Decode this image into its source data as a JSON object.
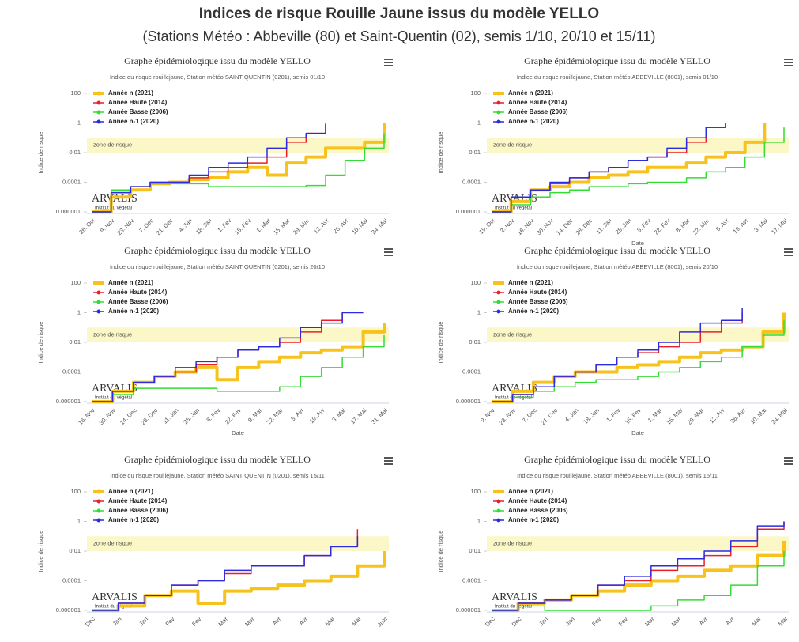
{
  "title": "Indices de risque Rouille Jaune issus du modèle YELLO",
  "subtitle": "(Stations Météo : Abbeville (80) et Saint-Quentin (02), semis 1/10, 20/10 et 15/11)",
  "chart_data": [
    {
      "type": "line",
      "title": "Graphe épidémiologique issu du modèle YELLO",
      "subtitle": "Indice du risque rouillejaune, Station météo SAINT QUENTIN (0201), semis 01/10",
      "ylabel": "Indice de risque",
      "ylog": true,
      "ylim": [
        1e-06,
        100
      ],
      "yticks": [
        100,
        1,
        0.01,
        0.0001,
        1e-06
      ],
      "risk_zone": {
        "label": "zone de risque",
        "range": [
          0.01,
          0.1
        ]
      },
      "logo": {
        "name": "ARVALIS",
        "tagline": "Institut du végétal"
      },
      "categories": [
        "26. Oct",
        "9. Nov",
        "23. Nov",
        "7. Dec",
        "21. Dec",
        "4. Jan",
        "18. Jan",
        "1. Fev",
        "15. Fev",
        "1. Mar",
        "15. Mar",
        "29. Mar",
        "12. Avr",
        "26. Avr",
        "10. Mai",
        "24. Mai"
      ],
      "series": [
        {
          "name": "Année n (2021)",
          "color": "#f7c21b",
          "values": [
            1e-06,
            1e-05,
            3e-05,
            8e-05,
            0.0001,
            0.00015,
            0.0002,
            0.0005,
            0.001,
            0.0003,
            0.002,
            0.005,
            0.02,
            0.02,
            0.05,
            1
          ]
        },
        {
          "name": "Année Haute (2014)",
          "color": "#e8202a",
          "values": [
            1e-06,
            2e-05,
            5e-05,
            0.0001,
            0.0001,
            0.0002,
            0.0005,
            0.001,
            0.002,
            0.005,
            0.05,
            0.2,
            1,
            null,
            null,
            null
          ]
        },
        {
          "name": "Année Basse (2006)",
          "color": "#33dd33",
          "values": [
            1e-06,
            3e-05,
            5e-05,
            8e-05,
            8e-05,
            8e-05,
            5e-05,
            5e-05,
            5e-05,
            5e-05,
            5e-05,
            6e-05,
            0.0003,
            0.003,
            0.02,
            0.2
          ]
        },
        {
          "name": "Année n-1 (2020)",
          "color": "#2b2be0",
          "values": [
            1e-06,
            2e-05,
            5e-05,
            0.0001,
            0.0001,
            0.0003,
            0.001,
            0.002,
            0.005,
            0.02,
            0.1,
            0.2,
            0.8,
            null,
            null,
            null
          ]
        }
      ]
    },
    {
      "type": "line",
      "title": "Graphe épidémiologique issu du modèle YELLO",
      "subtitle": "Indice du risque rouillejaune, Station météo ABBEVILLE (8001), semis 01/10",
      "ylabel": "Indice de risque",
      "xlabel": "Date",
      "ylog": true,
      "ylim": [
        1e-06,
        100
      ],
      "yticks": [
        100,
        1,
        0.01,
        0.0001,
        1e-06
      ],
      "risk_zone": {
        "label": "zone de risque",
        "range": [
          0.01,
          0.1
        ]
      },
      "logo": {
        "name": "ARVALIS",
        "tagline": "Institut du végétal"
      },
      "categories": [
        "19. Oct",
        "2. Nov",
        "16. Nov",
        "30. Nov",
        "14. Dec",
        "28. Dec",
        "11. Jan",
        "25. Jan",
        "8. Fev",
        "22. Fev",
        "8. Mar",
        "22. Mar",
        "5. Avr",
        "19. Avr",
        "3. Mai",
        "17. Mai"
      ],
      "series": [
        {
          "name": "Année n (2021)",
          "color": "#f7c21b",
          "values": [
            1e-06,
            5e-06,
            3e-05,
            5e-05,
            0.0001,
            0.0002,
            0.0003,
            0.0005,
            0.001,
            0.001,
            0.002,
            0.005,
            0.01,
            0.05,
            1,
            null
          ]
        },
        {
          "name": "Année Haute (2014)",
          "color": "#e8202a",
          "values": [
            1e-06,
            1e-05,
            3e-05,
            8e-05,
            0.0002,
            0.0005,
            0.001,
            0.003,
            0.005,
            0.01,
            0.05,
            0.5,
            1,
            null,
            null,
            null
          ]
        },
        {
          "name": "Année Basse (2006)",
          "color": "#33dd33",
          "values": [
            1e-06,
            3e-06,
            1e-05,
            2e-05,
            3e-05,
            5e-05,
            5e-05,
            8e-05,
            0.0001,
            0.0001,
            0.0002,
            0.0005,
            0.001,
            0.005,
            0.05,
            0.5
          ]
        },
        {
          "name": "Année n-1 (2020)",
          "color": "#2b2be0",
          "values": [
            1e-06,
            1e-05,
            3e-05,
            0.0001,
            0.0002,
            0.0005,
            0.001,
            0.003,
            0.005,
            0.02,
            0.1,
            0.5,
            1,
            null,
            null,
            null
          ]
        }
      ]
    },
    {
      "type": "line",
      "title": "Graphe épidémiologique issu du modèle YELLO",
      "subtitle": "Indice du risque rouillejaune, Station météo SAINT QUENTIN (0201), semis 20/10",
      "ylabel": "Indice de risque",
      "xlabel": "Date",
      "ylog": true,
      "ylim": [
        1e-06,
        100
      ],
      "yticks": [
        100,
        1,
        0.01,
        0.0001,
        1e-06
      ],
      "risk_zone": {
        "label": "zone de risque",
        "range": [
          0.01,
          0.1
        ]
      },
      "logo": {
        "name": "ARVALIS",
        "tagline": "Institut du végétal"
      },
      "categories": [
        "16. Nov",
        "30. Nov",
        "14. Dec",
        "28. Dec",
        "11. Jan",
        "25. Jan",
        "8. Fev",
        "22. Fev",
        "8. Mar",
        "22. Mar",
        "5. Avr",
        "19. Avr",
        "3. Mai",
        "17. Mai",
        "31. Mai"
      ],
      "series": [
        {
          "name": "Année n (2021)",
          "color": "#f7c21b",
          "values": [
            1e-06,
            5e-06,
            2e-05,
            5e-05,
            0.0001,
            0.0002,
            3e-05,
            0.0002,
            0.0005,
            0.001,
            0.002,
            0.003,
            0.005,
            0.05,
            0.2
          ]
        },
        {
          "name": "Année Haute (2014)",
          "color": "#e8202a",
          "values": [
            1e-06,
            5e-06,
            2e-05,
            5e-05,
            0.0001,
            0.0003,
            0.001,
            0.003,
            0.005,
            0.01,
            0.05,
            0.3,
            1,
            null,
            null
          ]
        },
        {
          "name": "Année Basse (2006)",
          "color": "#33dd33",
          "values": [
            1e-06,
            3e-06,
            8e-06,
            8e-06,
            8e-06,
            8e-06,
            5e-06,
            5e-06,
            5e-06,
            1e-05,
            5e-05,
            0.0002,
            0.001,
            0.005,
            0.03
          ]
        },
        {
          "name": "Année n-1 (2020)",
          "color": "#2b2be0",
          "values": [
            1e-06,
            5e-06,
            2e-05,
            5e-05,
            0.0002,
            0.0005,
            0.001,
            0.003,
            0.005,
            0.02,
            0.1,
            0.2,
            1,
            1,
            null
          ]
        }
      ]
    },
    {
      "type": "line",
      "title": "Graphe épidémiologique issu du modèle YELLO",
      "subtitle": "Indice du risque rouillejaune, Station météo ABBEVILLE (8001), semis 20/10",
      "ylabel": "Indice de risque",
      "xlabel": "Date",
      "ylog": true,
      "ylim": [
        1e-06,
        100
      ],
      "yticks": [
        100,
        1,
        0.01,
        0.0001,
        1e-06
      ],
      "risk_zone": {
        "label": "zone de risque",
        "range": [
          0.01,
          0.1
        ]
      },
      "logo": {
        "name": "ARVALIS",
        "tagline": "Institut du végétal"
      },
      "categories": [
        "9. Nov",
        "23. Nov",
        "7. Dec",
        "21. Dec",
        "4. Jan",
        "18. Jan",
        "1. Fev",
        "15. Fev",
        "1. Mar",
        "15. Mar",
        "29. Mar",
        "12. Avr",
        "26. Avr",
        "10. Mai",
        "24. Mai"
      ],
      "series": [
        {
          "name": "Année n (2021)",
          "color": "#f7c21b",
          "values": [
            1e-06,
            5e-06,
            2e-05,
            5e-05,
            0.0001,
            0.0001,
            0.0002,
            0.0003,
            0.0005,
            0.001,
            0.002,
            0.003,
            0.005,
            0.05,
            1
          ]
        },
        {
          "name": "Année Haute (2014)",
          "color": "#e8202a",
          "values": [
            1e-06,
            3e-06,
            1e-05,
            5e-05,
            0.0001,
            0.0003,
            0.001,
            0.002,
            0.005,
            0.01,
            0.05,
            0.2,
            1,
            null,
            null
          ]
        },
        {
          "name": "Année Basse (2006)",
          "color": "#33dd33",
          "values": [
            1e-06,
            2e-06,
            5e-06,
            1e-05,
            2e-05,
            3e-05,
            3e-05,
            5e-05,
            0.0001,
            0.0002,
            0.0005,
            0.001,
            0.005,
            0.03,
            0.3
          ]
        },
        {
          "name": "Année n-1 (2020)",
          "color": "#2b2be0",
          "values": [
            1e-06,
            3e-06,
            1e-05,
            5e-05,
            0.0001,
            0.0003,
            0.001,
            0.003,
            0.01,
            0.05,
            0.2,
            0.3,
            2,
            null,
            null
          ]
        }
      ]
    },
    {
      "type": "line",
      "title": "Graphe épidémiologique issu du modèle YELLO",
      "subtitle": "Indice du risque rouillejaune, Station météo SAINT QUENTIN (0201), semis 15/11",
      "ylabel": "Indice de risque",
      "ylog": true,
      "ylim": [
        1e-06,
        100
      ],
      "yticks": [
        100,
        1,
        0.01,
        0.0001,
        1e-06
      ],
      "risk_zone": {
        "label": "zone de risque",
        "range": [
          0.01,
          0.1
        ]
      },
      "logo": {
        "name": "ARVALIS",
        "tagline": "Institut du végétal"
      },
      "categories": [
        "Dec",
        "Jan",
        "Jan",
        "Fev",
        "Fev",
        "Mar",
        "Mar",
        "Avr",
        "Avr",
        "Mai",
        "Mai",
        "Juin"
      ],
      "series": [
        {
          "name": "Année n (2021)",
          "color": "#f7c21b",
          "values": [
            1e-06,
            2e-06,
            1e-05,
            2e-05,
            3e-06,
            2e-05,
            3e-05,
            5e-05,
            0.0001,
            0.0002,
            0.001,
            0.01
          ]
        },
        {
          "name": "Année Haute (2014)",
          "color": "#e8202a",
          "values": [
            1e-06,
            3e-06,
            1e-05,
            5e-05,
            0.0001,
            0.0003,
            0.001,
            0.001,
            0.005,
            0.02,
            0.3,
            null
          ]
        },
        {
          "name": "Année Basse (2006)",
          "color": "#33dd33",
          "values": [
            1e-06,
            3e-06,
            null,
            null,
            null,
            null,
            null,
            null,
            null,
            null,
            null,
            null
          ]
        },
        {
          "name": "Année n-1 (2020)",
          "color": "#2b2be0",
          "values": [
            1e-06,
            3e-06,
            1e-05,
            5e-05,
            0.0001,
            0.0005,
            0.001,
            0.001,
            0.005,
            0.02,
            0.1,
            null
          ]
        }
      ]
    },
    {
      "type": "line",
      "title": "Graphe épidémiologique issu du modèle YELLO",
      "subtitle": "Indice du risque rouillejaune, Station météo ABBEVILLE (8001), semis 15/11",
      "ylabel": "Indice de risque",
      "ylog": true,
      "ylim": [
        1e-06,
        100
      ],
      "yticks": [
        100,
        1,
        0.01,
        0.0001,
        1e-06
      ],
      "risk_zone": {
        "label": "zone de risque",
        "range": [
          0.01,
          0.1
        ]
      },
      "logo": {
        "name": "ARVALIS",
        "tagline": "Institut du végétal"
      },
      "categories": [
        "Dec",
        "Dec",
        "Jan",
        "Jan",
        "Fev",
        "Fev",
        "Mar",
        "Mar",
        "Avr",
        "Avr",
        "Mai",
        "Mai"
      ],
      "series": [
        {
          "name": "Année n (2021)",
          "color": "#f7c21b",
          "values": [
            1e-06,
            3e-06,
            5e-06,
            1e-05,
            2e-05,
            5e-05,
            0.0001,
            0.0002,
            0.0005,
            0.001,
            0.005,
            0.05
          ]
        },
        {
          "name": "Année Haute (2014)",
          "color": "#e8202a",
          "values": [
            1e-06,
            3e-06,
            5e-06,
            1e-05,
            5e-05,
            0.0001,
            0.0005,
            0.001,
            0.005,
            0.02,
            0.3,
            1
          ]
        },
        {
          "name": "Année Basse (2006)",
          "color": "#33dd33",
          "values": [
            1e-06,
            2e-06,
            1e-06,
            1e-06,
            1e-06,
            1e-06,
            2e-06,
            5e-06,
            1e-05,
            5e-05,
            0.001,
            0.01
          ]
        },
        {
          "name": "Année n-1 (2020)",
          "color": "#2b2be0",
          "values": [
            1e-06,
            3e-06,
            5e-06,
            1e-05,
            5e-05,
            0.0002,
            0.001,
            0.003,
            0.01,
            0.05,
            0.5,
            1
          ]
        }
      ]
    }
  ]
}
